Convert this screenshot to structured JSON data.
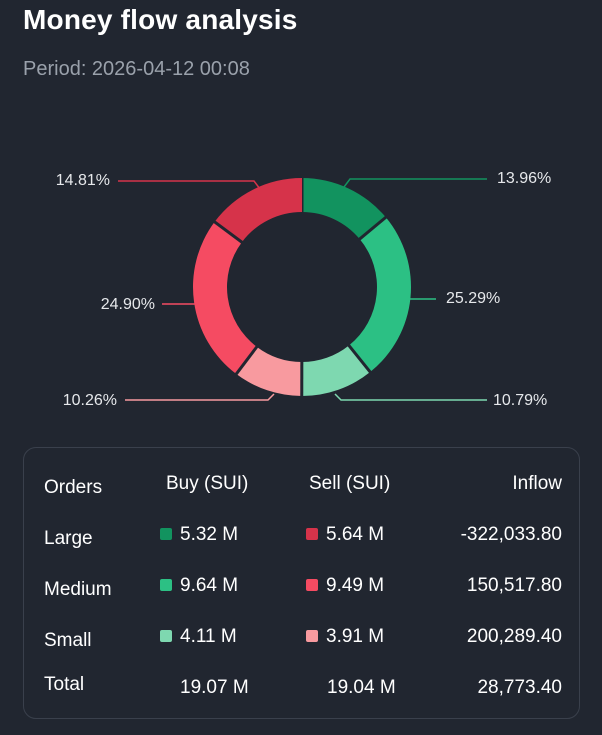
{
  "title": "Money flow analysis",
  "period": "Period: 2026-04-12 00:08",
  "colors": {
    "large_buy": "#12935f",
    "medium_buy": "#2cc084",
    "small_buy": "#7ed8b0",
    "large_sell": "#d6334a",
    "medium_sell": "#f54b62",
    "small_sell": "#f89a9f"
  },
  "chart_data": {
    "type": "pie",
    "title": "",
    "slices": [
      {
        "name": "Large buy",
        "label": "13.96%",
        "value": 13.96,
        "color": "#12935f"
      },
      {
        "name": "Medium buy",
        "label": "25.29%",
        "value": 25.29,
        "color": "#2cc084"
      },
      {
        "name": "Small buy",
        "label": "10.79%",
        "value": 10.79,
        "color": "#7ed8b0"
      },
      {
        "name": "Small sell",
        "label": "10.26%",
        "value": 10.26,
        "color": "#f89a9f"
      },
      {
        "name": "Medium sell",
        "label": "24.90%",
        "value": 24.9,
        "color": "#f54b62"
      },
      {
        "name": "Large sell",
        "label": "14.81%",
        "value": 14.81,
        "color": "#d6334a"
      }
    ]
  },
  "table": {
    "headers": {
      "orders": "Orders",
      "buy": "Buy (SUI)",
      "sell": "Sell (SUI)",
      "inflow": "Inflow"
    },
    "rows": [
      {
        "label": "Large",
        "buy": "5.32 M",
        "sell": "5.64 M",
        "inflow": "-322,033.80"
      },
      {
        "label": "Medium",
        "buy": "9.64 M",
        "sell": "9.49 M",
        "inflow": "150,517.80"
      },
      {
        "label": "Small",
        "buy": "4.11 M",
        "sell": "3.91 M",
        "inflow": "200,289.40"
      }
    ],
    "total": {
      "label": "Total",
      "buy": "19.07 M",
      "sell": "19.04 M",
      "inflow": "28,773.40"
    }
  }
}
